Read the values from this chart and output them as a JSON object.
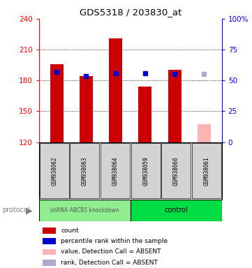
{
  "title": "GDS5318 / 203830_at",
  "samples": [
    "GSM938062",
    "GSM938063",
    "GSM938064",
    "GSM938059",
    "GSM938060",
    "GSM938061"
  ],
  "bar_values": [
    196,
    184,
    221,
    174,
    190,
    137
  ],
  "bar_colors": [
    "#cc0000",
    "#cc0000",
    "#cc0000",
    "#cc0000",
    "#cc0000",
    "#ffb3b3"
  ],
  "rank_values": [
    188,
    184,
    187,
    187,
    186,
    186
  ],
  "rank_colors": [
    "#0000cc",
    "#0000cc",
    "#0000cc",
    "#0000cc",
    "#0000cc",
    "#aaaacc"
  ],
  "ylim_left": [
    120,
    240
  ],
  "ylim_right": [
    0,
    100
  ],
  "yticks_left": [
    120,
    150,
    180,
    210,
    240
  ],
  "yticks_right": [
    0,
    25,
    50,
    75,
    100
  ],
  "gridlines": [
    150,
    180,
    210
  ],
  "bar_bottom": 120,
  "group1_label": "shRNA ABCB5 knockdown",
  "group1_color": "#90ee90",
  "group2_label": "control",
  "group2_color": "#00dd44",
  "protocol_label": "protocol",
  "legend_items": [
    {
      "color": "#cc0000",
      "label": "count"
    },
    {
      "color": "#0000cc",
      "label": "percentile rank within the sample"
    },
    {
      "color": "#ffb3b3",
      "label": "value, Detection Call = ABSENT"
    },
    {
      "color": "#aaaacc",
      "label": "rank, Detection Call = ABSENT"
    }
  ]
}
